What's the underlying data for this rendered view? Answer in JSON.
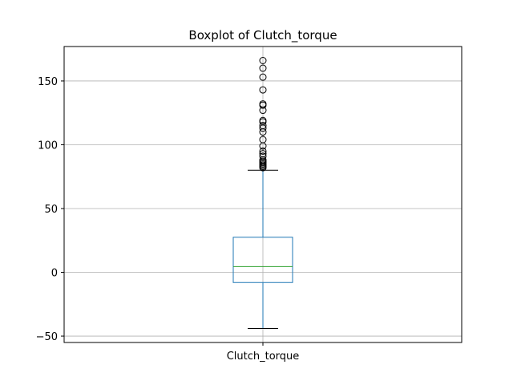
{
  "chart_data": {
    "type": "boxplot",
    "title": "Boxplot of Clutch_torque",
    "categories": [
      "Clutch_torque"
    ],
    "xlabel": "",
    "ylabel": "",
    "ylim": [
      -55,
      177
    ],
    "yticks": [
      -50,
      0,
      50,
      100,
      150
    ],
    "grid": true,
    "box": {
      "whisker_low": -44,
      "q1": -8,
      "median": 4.5,
      "q3": 27.5,
      "whisker_high": 80
    },
    "outliers": [
      82,
      83,
      84,
      85,
      86,
      87,
      88,
      91,
      93,
      95,
      99,
      104,
      110,
      113,
      115,
      118,
      119,
      127,
      131,
      132,
      143,
      153,
      160,
      166
    ],
    "colors": {
      "box": "#1f77b4",
      "median": "#2ca02c",
      "whisker": "#1f77b4",
      "cap": "#000000",
      "flier": "#000000",
      "grid": "#b0b0b0"
    }
  }
}
